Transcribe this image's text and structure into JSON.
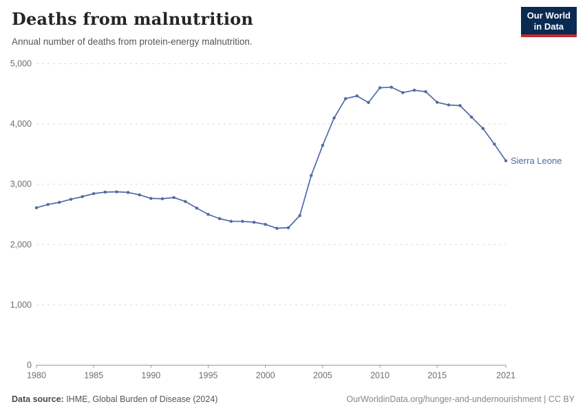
{
  "header": {
    "title": "Deaths from malnutrition",
    "subtitle": "Annual number of deaths from protein-energy malnutrition.",
    "logo": {
      "line1": "Our World",
      "line2": "in Data"
    }
  },
  "colors": {
    "title": "#252525",
    "subtitle": "#565656",
    "logo-bg": "#092a51",
    "logo-red": "#c5292b",
    "grid": "#dadada",
    "axis": "#999999",
    "tick-label": "#6d6d6d",
    "footer": "#555555",
    "footer-right": "#878787"
  },
  "chart_data": {
    "type": "line",
    "title": "Deaths from malnutrition",
    "subtitle": "Annual number of deaths from protein-energy malnutrition.",
    "xlabel": "",
    "ylabel": "",
    "xlim": [
      1980,
      2021
    ],
    "ylim": [
      0,
      5000
    ],
    "grid": "horizontal-dashed",
    "legend_position": "end-of-line-label",
    "x": [
      1980,
      1981,
      1982,
      1983,
      1984,
      1985,
      1986,
      1987,
      1988,
      1989,
      1990,
      1991,
      1992,
      1993,
      1994,
      1995,
      1996,
      1997,
      1998,
      1999,
      2000,
      2001,
      2002,
      2003,
      2004,
      2005,
      2006,
      2007,
      2008,
      2009,
      2010,
      2011,
      2012,
      2013,
      2014,
      2015,
      2016,
      2017,
      2018,
      2019,
      2020,
      2021
    ],
    "series": [
      {
        "name": "Sierra Leone",
        "color": "#4c6aa5",
        "values": [
          2610,
          2665,
          2700,
          2750,
          2795,
          2845,
          2870,
          2875,
          2865,
          2825,
          2765,
          2760,
          2780,
          2715,
          2605,
          2500,
          2430,
          2385,
          2385,
          2370,
          2335,
          2270,
          2280,
          2480,
          3145,
          3645,
          4100,
          4420,
          4465,
          4355,
          4600,
          4610,
          4520,
          4560,
          4535,
          4360,
          4315,
          4305,
          4115,
          3925,
          3665,
          3390
        ]
      }
    ],
    "yticks": [
      0,
      1000,
      2000,
      3000,
      4000,
      5000
    ],
    "ytick_labels": [
      "0",
      "1,000",
      "2,000",
      "3,000",
      "4,000",
      "5,000"
    ],
    "xticks": [
      1980,
      1985,
      1990,
      1995,
      2000,
      2005,
      2010,
      2015,
      2021
    ],
    "xtick_labels": [
      "1980",
      "1985",
      "1990",
      "1995",
      "2000",
      "2005",
      "2010",
      "2015",
      "2021"
    ]
  },
  "footer": {
    "source_label": "Data source:",
    "source_value": " IHME, Global Burden of Disease (2024)",
    "attribution": "OurWorldinData.org/hunger-and-undernourishment | CC BY"
  }
}
